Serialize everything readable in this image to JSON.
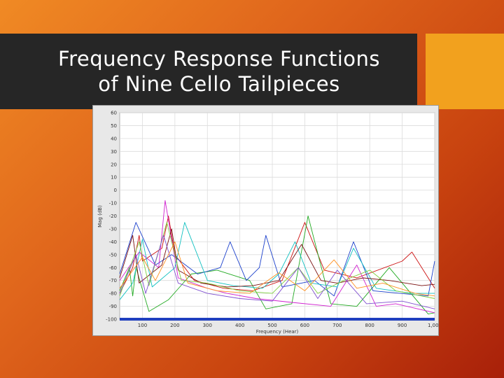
{
  "title": {
    "line1": "Frequency Response Functions",
    "line2": "of Nine Cello Tailpieces"
  },
  "colors": {
    "background_start": "#f08a24",
    "background_end": "#a8200a",
    "title_bar": "#262626",
    "accent": "#f2a11e",
    "axis_bar": "#1f3fbf"
  },
  "chart_data": {
    "type": "line",
    "title": "",
    "xlabel": "Frequency (Hear)",
    "ylabel": "Mag (dB)",
    "xlim": [
      30,
      1000
    ],
    "ylim": [
      -100,
      60
    ],
    "xticks": [
      100,
      200,
      300,
      400,
      500,
      600,
      700,
      800,
      900,
      1000
    ],
    "xtick_labels": [
      "100",
      "200",
      "300",
      "400",
      "500",
      "600",
      "700",
      "800",
      "900",
      "1,000"
    ],
    "yticks": [
      60,
      50,
      40,
      30,
      20,
      10,
      0,
      -10,
      -20,
      -30,
      -40,
      -50,
      -60,
      -70,
      -80,
      -90,
      -100
    ],
    "ytick_labels": [
      "60",
      "50",
      "40",
      "30",
      "20",
      "10",
      "0",
      "-10",
      "-20",
      "-30",
      "-40",
      "-50",
      "-60",
      "-70",
      "-80",
      "-90",
      "-100"
    ],
    "grid": true,
    "legend": "none",
    "series": [
      {
        "color": "#cc1010",
        "values": [
          [
            30,
            -80
          ],
          [
            70,
            -60
          ],
          [
            90,
            -35
          ],
          [
            100,
            -55
          ],
          [
            160,
            -45
          ],
          [
            180,
            -20
          ],
          [
            200,
            -50
          ],
          [
            260,
            -70
          ],
          [
            350,
            -76
          ],
          [
            440,
            -78
          ],
          [
            530,
            -70
          ],
          [
            600,
            -25
          ],
          [
            660,
            -62
          ],
          [
            760,
            -68
          ],
          [
            900,
            -55
          ],
          [
            930,
            -48
          ],
          [
            1000,
            -76
          ]
        ]
      },
      {
        "color": "#22aa22",
        "values": [
          [
            30,
            -78
          ],
          [
            60,
            -60
          ],
          [
            70,
            -82
          ],
          [
            80,
            -60
          ],
          [
            120,
            -94
          ],
          [
            180,
            -85
          ],
          [
            250,
            -65
          ],
          [
            330,
            -62
          ],
          [
            430,
            -70
          ],
          [
            480,
            -92
          ],
          [
            560,
            -88
          ],
          [
            610,
            -20
          ],
          [
            680,
            -88
          ],
          [
            760,
            -90
          ],
          [
            860,
            -60
          ],
          [
            980,
            -96
          ],
          [
            1000,
            -95
          ]
        ]
      },
      {
        "color": "#1a3fcc",
        "values": [
          [
            30,
            -65
          ],
          [
            80,
            -25
          ],
          [
            140,
            -58
          ],
          [
            190,
            -50
          ],
          [
            270,
            -65
          ],
          [
            340,
            -60
          ],
          [
            370,
            -40
          ],
          [
            420,
            -70
          ],
          [
            460,
            -60
          ],
          [
            480,
            -35
          ],
          [
            530,
            -75
          ],
          [
            630,
            -70
          ],
          [
            690,
            -82
          ],
          [
            750,
            -40
          ],
          [
            810,
            -78
          ],
          [
            980,
            -82
          ],
          [
            1000,
            -55
          ]
        ]
      },
      {
        "color": "#d020d0",
        "values": [
          [
            30,
            -70
          ],
          [
            90,
            -48
          ],
          [
            150,
            -60
          ],
          [
            170,
            -8
          ],
          [
            210,
            -68
          ],
          [
            300,
            -76
          ],
          [
            360,
            -80
          ],
          [
            450,
            -84
          ],
          [
            560,
            -87
          ],
          [
            680,
            -90
          ],
          [
            760,
            -58
          ],
          [
            820,
            -90
          ],
          [
            880,
            -88
          ],
          [
            1000,
            -95
          ]
        ]
      },
      {
        "color": "#10c0c0",
        "values": [
          [
            30,
            -85
          ],
          [
            70,
            -72
          ],
          [
            100,
            -38
          ],
          [
            130,
            -75
          ],
          [
            200,
            -60
          ],
          [
            230,
            -25
          ],
          [
            300,
            -70
          ],
          [
            380,
            -74
          ],
          [
            470,
            -76
          ],
          [
            520,
            -65
          ],
          [
            570,
            -40
          ],
          [
            620,
            -72
          ],
          [
            700,
            -75
          ],
          [
            750,
            -45
          ],
          [
            820,
            -76
          ],
          [
            930,
            -80
          ],
          [
            1000,
            -80
          ]
        ]
      },
      {
        "color": "#7a1010",
        "values": [
          [
            30,
            -68
          ],
          [
            70,
            -35
          ],
          [
            90,
            -72
          ],
          [
            160,
            -58
          ],
          [
            190,
            -30
          ],
          [
            210,
            -62
          ],
          [
            280,
            -72
          ],
          [
            360,
            -75
          ],
          [
            440,
            -74
          ],
          [
            520,
            -70
          ],
          [
            590,
            -42
          ],
          [
            650,
            -70
          ],
          [
            700,
            -72
          ],
          [
            780,
            -68
          ],
          [
            860,
            -70
          ],
          [
            960,
            -74
          ],
          [
            1000,
            -73
          ]
        ]
      },
      {
        "color": "#80d040",
        "values": [
          [
            30,
            -82
          ],
          [
            90,
            -40
          ],
          [
            120,
            -74
          ],
          [
            175,
            -25
          ],
          [
            220,
            -70
          ],
          [
            300,
            -72
          ],
          [
            400,
            -78
          ],
          [
            500,
            -80
          ],
          [
            580,
            -60
          ],
          [
            640,
            -80
          ],
          [
            720,
            -70
          ],
          [
            800,
            -62
          ],
          [
            880,
            -78
          ],
          [
            1000,
            -84
          ]
        ]
      },
      {
        "color": "#8050d0",
        "values": [
          [
            30,
            -80
          ],
          [
            80,
            -50
          ],
          [
            110,
            -80
          ],
          [
            165,
            -35
          ],
          [
            210,
            -72
          ],
          [
            300,
            -80
          ],
          [
            400,
            -84
          ],
          [
            500,
            -86
          ],
          [
            580,
            -60
          ],
          [
            640,
            -84
          ],
          [
            700,
            -62
          ],
          [
            790,
            -88
          ],
          [
            900,
            -86
          ],
          [
            1000,
            -92
          ]
        ]
      },
      {
        "color": "#ff9020",
        "values": [
          [
            30,
            -76
          ],
          [
            100,
            -52
          ],
          [
            140,
            -70
          ],
          [
            200,
            -40
          ],
          [
            240,
            -72
          ],
          [
            330,
            -78
          ],
          [
            430,
            -80
          ],
          [
            520,
            -64
          ],
          [
            600,
            -78
          ],
          [
            690,
            -54
          ],
          [
            760,
            -76
          ],
          [
            840,
            -72
          ],
          [
            940,
            -80
          ],
          [
            1000,
            -82
          ]
        ]
      }
    ]
  }
}
